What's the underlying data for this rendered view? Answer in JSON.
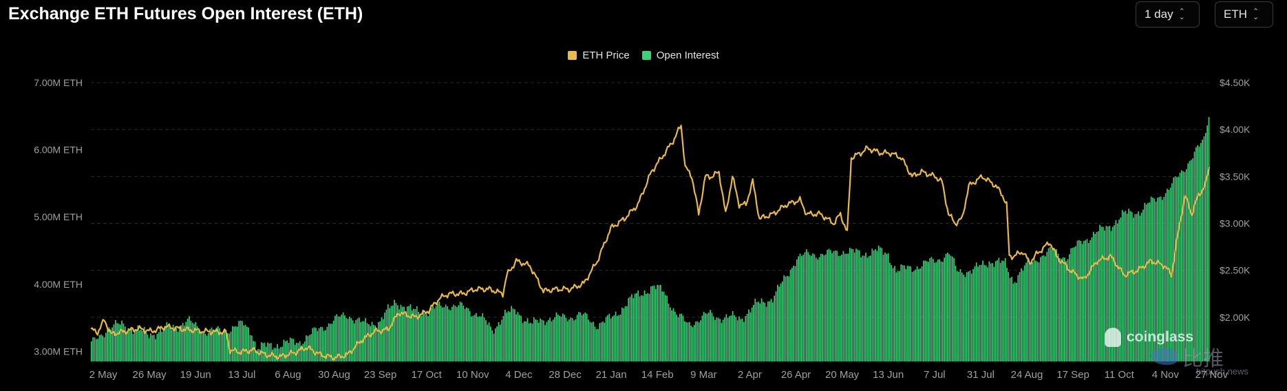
{
  "header": {
    "title": "Exchange ETH Futures Open Interest (ETH)",
    "interval_select": "1 day",
    "unit_select": "ETH"
  },
  "legend": [
    {
      "label": "ETH Price",
      "color": "#e9b949"
    },
    {
      "label": "Open Interest",
      "color": "#3dd07a"
    }
  ],
  "watermark": {
    "brand": "coinglass",
    "secondary": "比推",
    "secondary_url": "bitpush.news"
  },
  "chart_data": {
    "type": "bar+line",
    "title": "Exchange ETH Futures Open Interest (ETH)",
    "left_axis": {
      "ticks": [
        "7.00M ETH",
        "6.00M ETH",
        "5.00M ETH",
        "4.00M ETH",
        "3.00M ETH"
      ],
      "range": [
        2.85,
        7.0
      ],
      "unit": "M ETH"
    },
    "right_axis": {
      "ticks": [
        "$4.50K",
        "$4.00K",
        "$3.50K",
        "$3.00K",
        "$2.50K",
        "$2.00K"
      ],
      "range": [
        1.53,
        4.5
      ],
      "unit": "K USD"
    },
    "x_tick_labels": [
      "2 May",
      "26 May",
      "19 Jun",
      "13 Jul",
      "6 Aug",
      "30 Aug",
      "23 Sep",
      "17 Oct",
      "10 Nov",
      "4 Dec",
      "28 Dec",
      "21 Jan",
      "14 Feb",
      "9 Mar",
      "2 Apr",
      "26 Apr",
      "20 May",
      "13 Jun",
      "7 Jul",
      "31 Jul",
      "24 Aug",
      "17 Sep",
      "11 Oct",
      "4 Nov",
      "27 Nov"
    ],
    "grid": true,
    "legend_position": "top-center",
    "series": [
      {
        "name": "Open Interest",
        "type": "bar",
        "axis": "left",
        "color": "#3dd07a",
        "anchors": [
          [
            0,
            3.1
          ],
          [
            10,
            3.35
          ],
          [
            20,
            3.4
          ],
          [
            35,
            3.25
          ],
          [
            50,
            3.35
          ],
          [
            60,
            3.45
          ],
          [
            70,
            3.3
          ],
          [
            80,
            3.3
          ],
          [
            95,
            3.4
          ],
          [
            100,
            3.3
          ],
          [
            103,
            3.05
          ],
          [
            115,
            3.1
          ],
          [
            130,
            3.15
          ],
          [
            140,
            3.3
          ],
          [
            150,
            3.45
          ],
          [
            155,
            3.5
          ],
          [
            160,
            3.55
          ],
          [
            170,
            3.4
          ],
          [
            180,
            3.45
          ],
          [
            190,
            3.75
          ],
          [
            200,
            3.6
          ],
          [
            210,
            3.6
          ],
          [
            222,
            3.7
          ],
          [
            232,
            3.65
          ],
          [
            242,
            3.55
          ],
          [
            250,
            3.3
          ],
          [
            257,
            3.55
          ],
          [
            265,
            3.6
          ],
          [
            275,
            3.4
          ],
          [
            285,
            3.5
          ],
          [
            295,
            3.5
          ],
          [
            305,
            3.55
          ],
          [
            315,
            3.4
          ],
          [
            325,
            3.5
          ],
          [
            335,
            3.75
          ],
          [
            345,
            3.9
          ],
          [
            350,
            3.95
          ],
          [
            357,
            3.9
          ],
          [
            365,
            3.55
          ],
          [
            372,
            3.4
          ],
          [
            385,
            3.55
          ],
          [
            395,
            3.5
          ],
          [
            405,
            3.5
          ],
          [
            415,
            3.7
          ],
          [
            425,
            3.8
          ],
          [
            432,
            4.05
          ],
          [
            440,
            4.4
          ],
          [
            450,
            4.45
          ],
          [
            460,
            4.45
          ],
          [
            470,
            4.5
          ],
          [
            480,
            4.45
          ],
          [
            490,
            4.5
          ],
          [
            497,
            4.45
          ],
          [
            502,
            4.2
          ],
          [
            512,
            4.25
          ],
          [
            520,
            4.3
          ],
          [
            530,
            4.4
          ],
          [
            535,
            4.45
          ],
          [
            540,
            4.2
          ],
          [
            550,
            4.2
          ],
          [
            560,
            4.35
          ],
          [
            570,
            4.3
          ],
          [
            575,
            4.05
          ],
          [
            580,
            4.2
          ],
          [
            590,
            4.4
          ],
          [
            600,
            4.5
          ],
          [
            608,
            4.4
          ],
          [
            618,
            4.65
          ],
          [
            630,
            4.8
          ],
          [
            640,
            4.95
          ],
          [
            645,
            5.05
          ],
          [
            655,
            5.1
          ],
          [
            665,
            5.3
          ],
          [
            672,
            5.4
          ],
          [
            682,
            5.75
          ],
          [
            690,
            6.0
          ],
          [
            694,
            6.15
          ],
          [
            697,
            6.55
          ]
        ]
      },
      {
        "name": "ETH Price",
        "type": "line",
        "axis": "right",
        "color": "#e9b949",
        "anchors": [
          [
            0,
            1.87
          ],
          [
            5,
            1.84
          ],
          [
            10,
            1.97
          ],
          [
            15,
            1.82
          ],
          [
            25,
            1.85
          ],
          [
            35,
            1.88
          ],
          [
            45,
            1.85
          ],
          [
            55,
            1.9
          ],
          [
            70,
            1.87
          ],
          [
            85,
            1.85
          ],
          [
            100,
            1.84
          ],
          [
            103,
            1.65
          ],
          [
            110,
            1.63
          ],
          [
            120,
            1.65
          ],
          [
            130,
            1.6
          ],
          [
            140,
            1.58
          ],
          [
            150,
            1.62
          ],
          [
            160,
            1.68
          ],
          [
            170,
            1.6
          ],
          [
            180,
            1.57
          ],
          [
            190,
            1.6
          ],
          [
            200,
            1.75
          ],
          [
            210,
            1.85
          ],
          [
            220,
            1.87
          ],
          [
            228,
            2.05
          ],
          [
            240,
            2.0
          ],
          [
            250,
            2.07
          ],
          [
            258,
            2.2
          ],
          [
            265,
            2.25
          ],
          [
            275,
            2.25
          ],
          [
            285,
            2.3
          ],
          [
            295,
            2.3
          ],
          [
            305,
            2.25
          ],
          [
            308,
            2.45
          ],
          [
            315,
            2.6
          ],
          [
            325,
            2.55
          ],
          [
            335,
            2.28
          ],
          [
            345,
            2.3
          ],
          [
            355,
            2.3
          ],
          [
            365,
            2.36
          ],
          [
            375,
            2.6
          ],
          [
            385,
            2.95
          ],
          [
            395,
            3.05
          ],
          [
            405,
            3.2
          ],
          [
            415,
            3.55
          ],
          [
            425,
            3.75
          ],
          [
            432,
            3.9
          ],
          [
            437,
            4.05
          ],
          [
            440,
            3.6
          ],
          [
            445,
            3.5
          ],
          [
            450,
            3.1
          ],
          [
            455,
            3.5
          ],
          [
            460,
            3.5
          ],
          [
            465,
            3.55
          ],
          [
            470,
            3.1
          ],
          [
            475,
            3.5
          ],
          [
            480,
            3.2
          ],
          [
            485,
            3.2
          ],
          [
            490,
            3.45
          ],
          [
            495,
            3.05
          ],
          [
            505,
            3.1
          ],
          [
            515,
            3.2
          ],
          [
            525,
            3.25
          ],
          [
            530,
            3.1
          ],
          [
            540,
            3.1
          ],
          [
            550,
            3.0
          ],
          [
            555,
            3.1
          ],
          [
            560,
            2.9
          ],
          [
            563,
            3.7
          ],
          [
            570,
            3.75
          ],
          [
            575,
            3.8
          ],
          [
            585,
            3.75
          ],
          [
            592,
            3.75
          ],
          [
            600,
            3.7
          ],
          [
            608,
            3.5
          ],
          [
            615,
            3.55
          ],
          [
            625,
            3.5
          ],
          [
            630,
            3.45
          ],
          [
            635,
            3.1
          ],
          [
            640,
            3.0
          ],
          [
            645,
            3.05
          ],
          [
            650,
            3.4
          ],
          [
            660,
            3.5
          ],
          [
            665,
            3.45
          ],
          [
            670,
            3.4
          ],
          [
            675,
            3.3
          ],
          [
            678,
            3.2
          ],
          [
            680,
            2.65
          ],
          [
            683,
            2.65
          ],
          [
            690,
            2.7
          ],
          [
            695,
            2.58
          ],
          [
            700,
            2.67
          ],
          [
            710,
            2.8
          ],
          [
            715,
            2.65
          ],
          [
            725,
            2.5
          ],
          [
            735,
            2.4
          ],
          [
            745,
            2.6
          ],
          [
            755,
            2.65
          ],
          [
            765,
            2.45
          ],
          [
            775,
            2.5
          ],
          [
            785,
            2.6
          ],
          [
            795,
            2.55
          ],
          [
            800,
            2.45
          ],
          [
            805,
            2.9
          ],
          [
            810,
            3.3
          ],
          [
            815,
            3.1
          ],
          [
            820,
            3.3
          ],
          [
            825,
            3.4
          ],
          [
            828,
            3.6
          ]
        ]
      }
    ]
  }
}
